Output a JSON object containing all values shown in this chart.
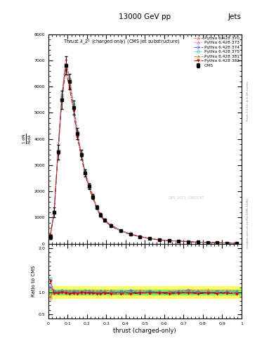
{
  "title_top": "13000 GeV pp",
  "title_right": "Jets",
  "plot_title": "Thrust $\\lambda\\_2^1$ (charged only) (CMS jet substructure)",
  "xlabel": "thrust (charged-only)",
  "right_label_main": "mcplots.cern.ch [arXiv:1306.3436]",
  "right_label_rivet": "Rivet 3.1.10; ≥ 3.1M events",
  "watermark": "CMS_2021_I1920187",
  "x_bins": [
    0.0,
    0.02,
    0.04,
    0.06,
    0.08,
    0.1,
    0.12,
    0.14,
    0.16,
    0.18,
    0.2,
    0.22,
    0.24,
    0.26,
    0.28,
    0.3,
    0.35,
    0.4,
    0.45,
    0.5,
    0.55,
    0.6,
    0.65,
    0.7,
    0.75,
    0.8,
    0.85,
    0.9,
    0.95,
    1.0
  ],
  "cms_y": [
    250,
    1200,
    3500,
    5500,
    6800,
    6200,
    5200,
    4200,
    3400,
    2700,
    2200,
    1800,
    1400,
    1100,
    900,
    700,
    500,
    370,
    270,
    200,
    150,
    120,
    100,
    80,
    60,
    50,
    40,
    30,
    20
  ],
  "cms_yerr": [
    80,
    180,
    280,
    350,
    350,
    300,
    260,
    220,
    180,
    140,
    110,
    90,
    70,
    60,
    50,
    42,
    32,
    25,
    20,
    16,
    13,
    11,
    9,
    8,
    7,
    6,
    5,
    4,
    3
  ],
  "pythia_lines": [
    {
      "label": "Pythia 6.428 370",
      "color": "#ff6666",
      "linestyle": "--",
      "marker": "^",
      "mfc": "none",
      "ms": 2.5
    },
    {
      "label": "Pythia 6.428 373",
      "color": "#cc55cc",
      "linestyle": ":",
      "marker": "^",
      "mfc": "none",
      "ms": 2.5
    },
    {
      "label": "Pythia 6.428 374",
      "color": "#5555ff",
      "linestyle": "--",
      "marker": "o",
      "mfc": "none",
      "ms": 2.5
    },
    {
      "label": "Pythia 6.428 375",
      "color": "#00bbbb",
      "linestyle": ":",
      "marker": "o",
      "mfc": "none",
      "ms": 2.5
    },
    {
      "label": "Pythia 6.428 381",
      "color": "#bb8833",
      "linestyle": "--",
      "marker": "^",
      "mfc": "none",
      "ms": 2.5
    },
    {
      "label": "Pythia 6.428 382",
      "color": "#cc0000",
      "linestyle": "-.",
      "marker": "v",
      "mfc": "#cc0000",
      "ms": 2.5
    }
  ],
  "pythia_scales": [
    1.03,
    1.0,
    1.01,
    1.015,
    1.005,
    0.97
  ],
  "ylim_main": [
    0,
    8000
  ],
  "yticks_main": [
    0,
    1000,
    2000,
    3000,
    4000,
    5000,
    6000,
    7000,
    8000
  ],
  "ylim_ratio": [
    0.4,
    2.1
  ],
  "yticks_ratio": [
    0.5,
    1.0,
    2.0
  ],
  "xlim": [
    0.0,
    1.0
  ],
  "xticks": [
    0.0,
    0.1,
    0.2,
    0.3,
    0.4,
    0.5,
    0.6,
    0.7,
    0.8,
    0.9,
    1.0
  ],
  "band_yellow_lo": 0.87,
  "band_yellow_hi": 1.13,
  "band_green_lo": 0.95,
  "band_green_hi": 1.05,
  "bg_color": "#ffffff"
}
